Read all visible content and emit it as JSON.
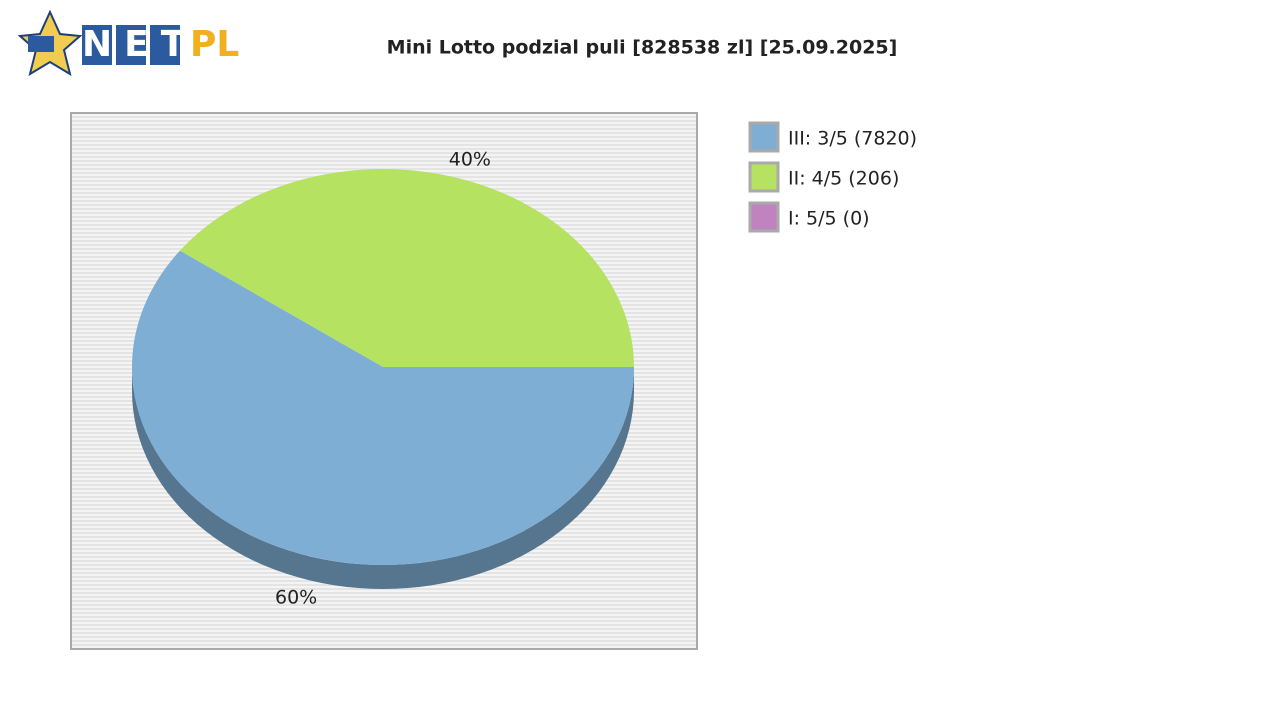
{
  "logo": {
    "left": "NET",
    "right": "PL"
  },
  "chart_data": {
    "type": "pie",
    "title": "Mini Lotto podzial puli [828538 zl] [25.09.2025]",
    "categories": [
      "III: 3/5 (7820)",
      "II: 4/5 (206)",
      "I: 5/5 (0)"
    ],
    "values": [
      60,
      40,
      0
    ],
    "value_labels": [
      "60%",
      "40%",
      null
    ],
    "colors": [
      "#7eaed3",
      "#b5e261",
      "#c182c0"
    ],
    "legend": "right"
  }
}
